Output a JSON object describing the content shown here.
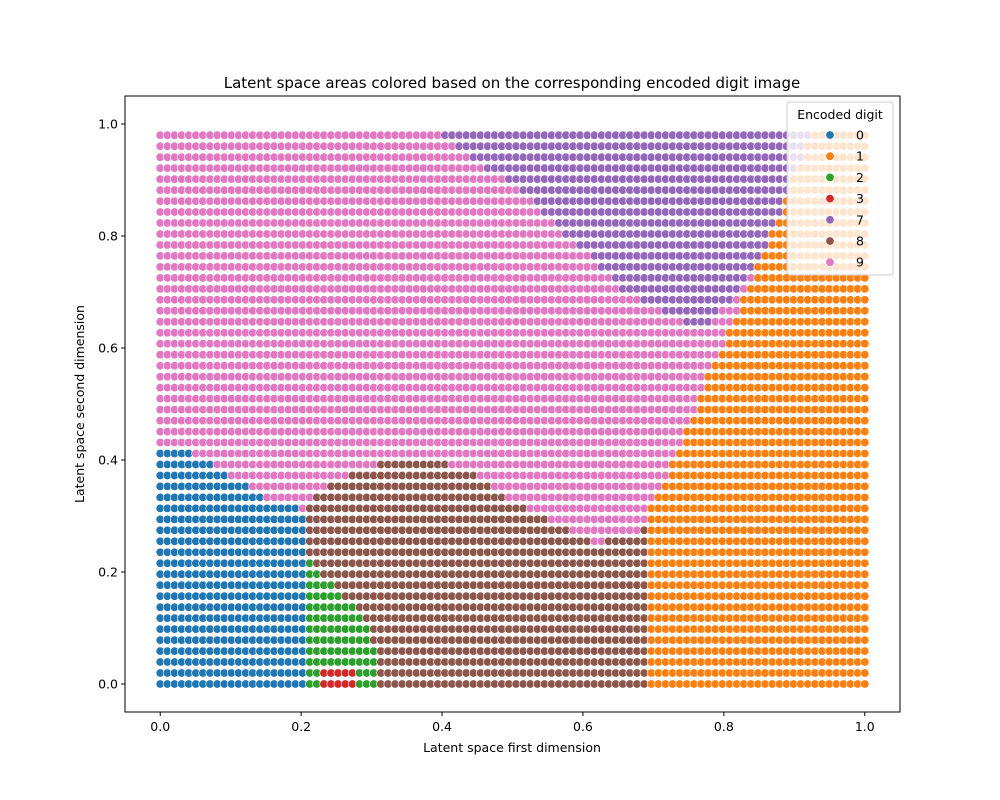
{
  "chart_data": {
    "type": "scatter",
    "title": "Latent space areas colored based on the corresponding encoded digit image",
    "xlabel": "Latent space first dimension",
    "ylabel": "Latent space second dimension",
    "xlim": [
      -0.05,
      1.05
    ],
    "ylim": [
      -0.05,
      1.05
    ],
    "xticks": [
      0.0,
      0.2,
      0.4,
      0.6,
      0.8,
      1.0
    ],
    "yticks": [
      0.0,
      0.2,
      0.4,
      0.6,
      0.8,
      1.0
    ],
    "xtick_labels": [
      "0.0",
      "0.2",
      "0.4",
      "0.6",
      "0.8",
      "1.0"
    ],
    "ytick_labels": [
      "0.0",
      "0.2",
      "0.4",
      "0.6",
      "0.8",
      "1.0"
    ],
    "grid": false,
    "legend": {
      "title": "Encoded digit",
      "placement": "top-right"
    },
    "grid_points": {
      "x_min": 0.0,
      "x_max": 1.0,
      "y_min": 0.0,
      "y_max": 0.98,
      "n_x": 100,
      "n_y": 51
    },
    "series": [
      {
        "name": "0",
        "color": "#1f77b4"
      },
      {
        "name": "1",
        "color": "#ff7f0e"
      },
      {
        "name": "2",
        "color": "#2ca02c"
      },
      {
        "name": "3",
        "color": "#d62728"
      },
      {
        "name": "7",
        "color": "#9467bd"
      },
      {
        "name": "8",
        "color": "#8c564b"
      },
      {
        "name": "9",
        "color": "#e377c2"
      }
    ],
    "regions": {
      "digit_7_boundary": [
        [
          0.4,
          0.98
        ],
        [
          0.52,
          0.87
        ],
        [
          0.66,
          0.7
        ],
        [
          0.77,
          0.63
        ],
        [
          0.84,
          0.73
        ],
        [
          0.88,
          0.84
        ],
        [
          0.93,
          0.98
        ]
      ],
      "digit_1_left_edge": [
        [
          0.69,
          0.0
        ],
        [
          0.69,
          0.31
        ],
        [
          0.73,
          0.4
        ],
        [
          0.77,
          0.53
        ],
        [
          0.81,
          0.64
        ],
        [
          0.85,
          0.75
        ],
        [
          0.89,
          0.87
        ],
        [
          0.92,
          0.98
        ]
      ],
      "digit_0_upper_edge": [
        [
          0.0,
          0.43
        ],
        [
          0.05,
          0.41
        ],
        [
          0.1,
          0.37
        ],
        [
          0.15,
          0.33
        ],
        [
          0.21,
          0.31
        ]
      ],
      "digit_8_upper_edge": [
        [
          0.21,
          0.33
        ],
        [
          0.26,
          0.37
        ],
        [
          0.33,
          0.4
        ],
        [
          0.43,
          0.39
        ],
        [
          0.52,
          0.31
        ],
        [
          0.62,
          0.25
        ],
        [
          0.69,
          0.28
        ]
      ],
      "digit_2_right_edge": [
        [
          0.21,
          0.22
        ],
        [
          0.26,
          0.16
        ],
        [
          0.3,
          0.1
        ],
        [
          0.31,
          0.0
        ]
      ],
      "digit_3_region": {
        "x_range": [
          0.23,
          0.28
        ],
        "y_max": 0.03
      }
    }
  }
}
